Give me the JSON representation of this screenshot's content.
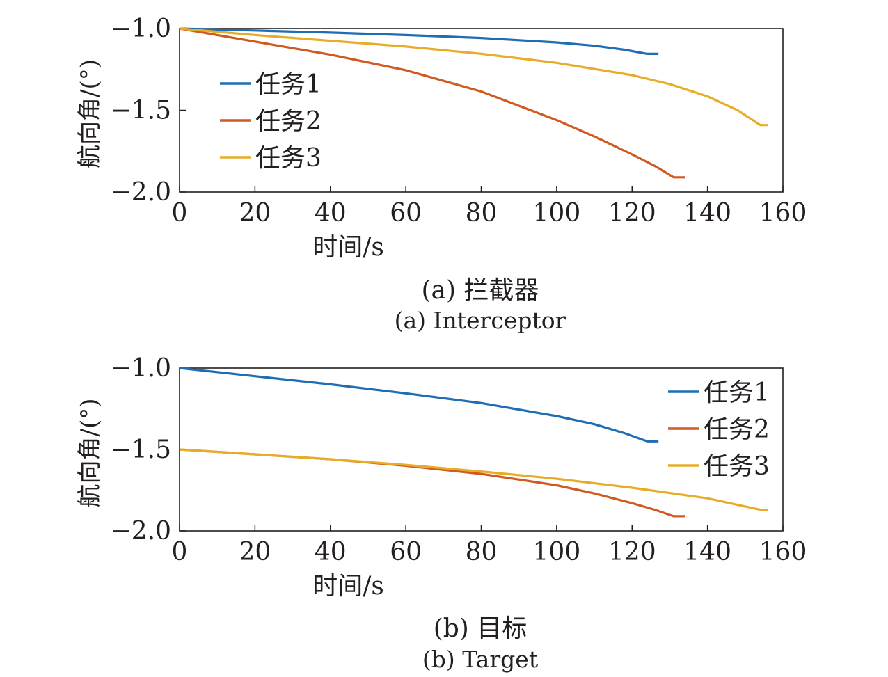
{
  "chart_data": [
    {
      "type": "line",
      "xlabel": "时间/s",
      "ylabel": "航向角/(°)",
      "xlim": [
        0,
        160
      ],
      "ylim": [
        -2.0,
        -1.0
      ],
      "xticks": [
        0,
        20,
        40,
        60,
        80,
        100,
        120,
        140,
        160
      ],
      "yticks": [
        -1.0,
        -1.5,
        -2.0
      ],
      "xtick_labels": [
        "0",
        "20",
        "40",
        "60",
        "80",
        "100",
        "120",
        "140",
        "160"
      ],
      "ytick_labels": [
        "−1.0",
        "−1.5",
        "−2.0"
      ],
      "legend_position": "left",
      "grid": false,
      "caption_zh": "(a) 拦截器",
      "caption_en": "(a) Interceptor",
      "series": [
        {
          "name": "任务1",
          "color": "#1f6eb3",
          "x": [
            0,
            20,
            40,
            60,
            80,
            100,
            110,
            118,
            124,
            127
          ],
          "y": [
            -1.0,
            -1.012,
            -1.025,
            -1.04,
            -1.058,
            -1.085,
            -1.105,
            -1.13,
            -1.155,
            -1.155
          ]
        },
        {
          "name": "任务2",
          "color": "#d05a22",
          "x": [
            0,
            20,
            40,
            60,
            80,
            100,
            110,
            120,
            126,
            131,
            134
          ],
          "y": [
            -1.0,
            -1.08,
            -1.16,
            -1.255,
            -1.385,
            -1.56,
            -1.66,
            -1.77,
            -1.84,
            -1.91,
            -1.91
          ]
        },
        {
          "name": "任务3",
          "color": "#e8ad28",
          "x": [
            0,
            20,
            40,
            60,
            80,
            100,
            120,
            130,
            140,
            148,
            154,
            156
          ],
          "y": [
            -1.0,
            -1.04,
            -1.075,
            -1.11,
            -1.155,
            -1.21,
            -1.285,
            -1.34,
            -1.415,
            -1.5,
            -1.59,
            -1.59
          ]
        }
      ]
    },
    {
      "type": "line",
      "xlabel": "时间/s",
      "ylabel": "航向角/(°)",
      "xlim": [
        0,
        160
      ],
      "ylim": [
        -2.0,
        -1.0
      ],
      "xticks": [
        0,
        20,
        40,
        60,
        80,
        100,
        120,
        140,
        160
      ],
      "yticks": [
        -1.0,
        -1.5,
        -2.0
      ],
      "xtick_labels": [
        "0",
        "20",
        "40",
        "60",
        "80",
        "100",
        "120",
        "140",
        "160"
      ],
      "ytick_labels": [
        "−1.0",
        "−1.5",
        "−2.0"
      ],
      "legend_position": "top-right",
      "grid": false,
      "caption_zh": "(b) 目标",
      "caption_en": "(b) Target",
      "series": [
        {
          "name": "任务1",
          "color": "#1f6eb3",
          "x": [
            0,
            20,
            40,
            60,
            80,
            100,
            110,
            118,
            124,
            127
          ],
          "y": [
            -1.0,
            -1.05,
            -1.1,
            -1.155,
            -1.215,
            -1.295,
            -1.345,
            -1.4,
            -1.45,
            -1.45
          ]
        },
        {
          "name": "任务2",
          "color": "#d05a22",
          "x": [
            0,
            20,
            40,
            60,
            80,
            100,
            110,
            120,
            126,
            131,
            134
          ],
          "y": [
            -1.5,
            -1.53,
            -1.56,
            -1.6,
            -1.65,
            -1.72,
            -1.77,
            -1.83,
            -1.87,
            -1.91,
            -1.91
          ]
        },
        {
          "name": "任务3",
          "color": "#e8ad28",
          "x": [
            0,
            20,
            40,
            60,
            80,
            100,
            120,
            140,
            150,
            154,
            156
          ],
          "y": [
            -1.5,
            -1.53,
            -1.56,
            -1.595,
            -1.635,
            -1.68,
            -1.735,
            -1.8,
            -1.85,
            -1.87,
            -1.87
          ]
        }
      ]
    }
  ]
}
